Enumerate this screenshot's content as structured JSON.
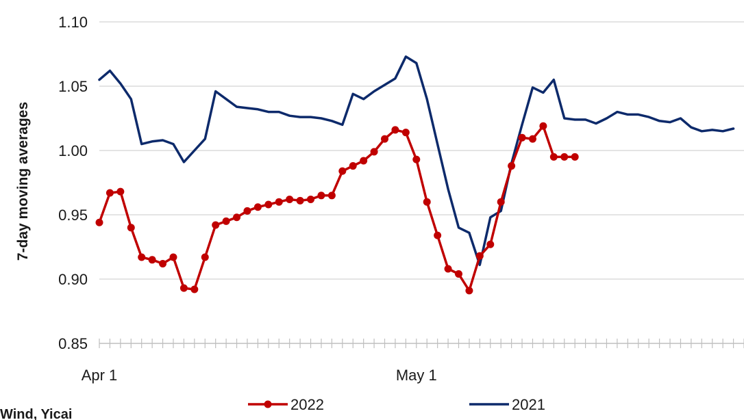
{
  "chart_data": {
    "type": "line",
    "ylabel": "7-day moving averages",
    "xlabel": "",
    "title": "",
    "source": "Wind, Yicai",
    "ylim": [
      0.85,
      1.1
    ],
    "yticks": [
      "0.85",
      "0.90",
      "0.95",
      "1.00",
      "1.05",
      "1.10"
    ],
    "xticks": [
      {
        "label": "Apr 1",
        "day": 0
      },
      {
        "label": "May 1",
        "day": 30
      }
    ],
    "x_range_days": [
      0,
      61
    ],
    "grid": true,
    "legend_position": "bottom",
    "series": [
      {
        "name": "2022",
        "color": "#c00000",
        "markers": true,
        "points": [
          [
            0,
            0.944
          ],
          [
            1,
            0.967
          ],
          [
            2,
            0.968
          ],
          [
            3,
            0.94
          ],
          [
            4,
            0.917
          ],
          [
            5,
            0.915
          ],
          [
            6,
            0.912
          ],
          [
            7,
            0.917
          ],
          [
            8,
            0.893
          ],
          [
            9,
            0.892
          ],
          [
            10,
            0.917
          ],
          [
            11,
            0.942
          ],
          [
            12,
            0.945
          ],
          [
            13,
            0.948
          ],
          [
            14,
            0.953
          ],
          [
            15,
            0.956
          ],
          [
            16,
            0.958
          ],
          [
            17,
            0.96
          ],
          [
            18,
            0.962
          ],
          [
            19,
            0.961
          ],
          [
            20,
            0.962
          ],
          [
            21,
            0.965
          ],
          [
            22,
            0.965
          ],
          [
            23,
            0.984
          ],
          [
            24,
            0.988
          ],
          [
            25,
            0.992
          ],
          [
            26,
            0.999
          ],
          [
            27,
            1.009
          ],
          [
            28,
            1.016
          ],
          [
            29,
            1.014
          ],
          [
            30,
            0.993
          ],
          [
            31,
            0.96
          ],
          [
            32,
            0.934
          ],
          [
            33,
            0.908
          ],
          [
            34,
            0.904
          ],
          [
            35,
            0.891
          ],
          [
            36,
            0.918
          ],
          [
            37,
            0.927
          ],
          [
            38,
            0.96
          ],
          [
            39,
            0.988
          ],
          [
            40,
            1.01
          ],
          [
            41,
            1.009
          ],
          [
            42,
            1.019
          ],
          [
            43,
            0.995
          ],
          [
            44,
            0.995
          ],
          [
            45,
            0.995
          ]
        ]
      },
      {
        "name": "2021",
        "color": "#0d2a6b",
        "markers": false,
        "points": [
          [
            0,
            1.055
          ],
          [
            1,
            1.062
          ],
          [
            2,
            1.052
          ],
          [
            3,
            1.04
          ],
          [
            4,
            1.005
          ],
          [
            5,
            1.007
          ],
          [
            6,
            1.008
          ],
          [
            7,
            1.005
          ],
          [
            8,
            0.991
          ],
          [
            9,
            1.0
          ],
          [
            10,
            1.009
          ],
          [
            11,
            1.046
          ],
          [
            12,
            1.04
          ],
          [
            13,
            1.034
          ],
          [
            14,
            1.033
          ],
          [
            15,
            1.032
          ],
          [
            16,
            1.03
          ],
          [
            17,
            1.03
          ],
          [
            18,
            1.027
          ],
          [
            19,
            1.026
          ],
          [
            20,
            1.026
          ],
          [
            21,
            1.025
          ],
          [
            22,
            1.023
          ],
          [
            23,
            1.02
          ],
          [
            24,
            1.044
          ],
          [
            25,
            1.04
          ],
          [
            26,
            1.046
          ],
          [
            27,
            1.051
          ],
          [
            28,
            1.056
          ],
          [
            29,
            1.073
          ],
          [
            30,
            1.068
          ],
          [
            31,
            1.04
          ],
          [
            32,
            1.005
          ],
          [
            33,
            0.97
          ],
          [
            34,
            0.94
          ],
          [
            35,
            0.936
          ],
          [
            36,
            0.911
          ],
          [
            37,
            0.948
          ],
          [
            38,
            0.953
          ],
          [
            39,
            0.99
          ],
          [
            40,
            1.02
          ],
          [
            41,
            1.049
          ],
          [
            42,
            1.045
          ],
          [
            43,
            1.055
          ],
          [
            44,
            1.025
          ],
          [
            45,
            1.024
          ],
          [
            46,
            1.024
          ],
          [
            47,
            1.021
          ],
          [
            48,
            1.025
          ],
          [
            49,
            1.03
          ],
          [
            50,
            1.028
          ],
          [
            51,
            1.028
          ],
          [
            52,
            1.026
          ],
          [
            53,
            1.023
          ],
          [
            54,
            1.022
          ],
          [
            55,
            1.025
          ],
          [
            56,
            1.018
          ],
          [
            57,
            1.015
          ],
          [
            58,
            1.016
          ],
          [
            59,
            1.015
          ],
          [
            60,
            1.017
          ]
        ]
      }
    ]
  }
}
